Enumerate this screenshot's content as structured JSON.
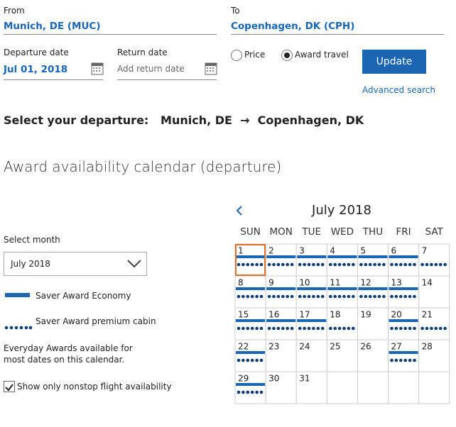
{
  "search": {
    "from_label": "From",
    "from_value": "Munich, DE (MUC)",
    "to_label": "To",
    "to_value": "Copenhagen, DK (CPH)",
    "departure_label": "Departure date",
    "departure_value": "Jul 01, 2018",
    "return_label": "Return date",
    "return_placeholder": "Add return date",
    "options": [
      {
        "label": "Price",
        "selected": false
      },
      {
        "label": "Award travel",
        "selected": true
      }
    ],
    "button": "Update",
    "advanced_link": "Advanced search"
  },
  "heading": {
    "prefix": "Select your departure:",
    "origin": "Munich, DE",
    "arrow": "→",
    "destination": "Copenhagen, DK"
  },
  "section_title": "Award availability calendar (departure)",
  "sidebar": {
    "select_label": "Select month",
    "select_value": "July 2018",
    "legend": [
      {
        "label": "Saver Award Economy"
      },
      {
        "label": "Saver Award premium cabin"
      }
    ],
    "note": "Everyday Awards available for most dates on this calendar.",
    "nonstop_label": "Show only nonstop flight availability",
    "nonstop_checked": true
  },
  "calendar": {
    "month": "July 2018",
    "weekdays": [
      "SUN",
      "MON",
      "TUE",
      "WED",
      "THU",
      "FRI",
      "SAT"
    ],
    "days": [
      {
        "day": 1,
        "economy": true,
        "premium": true,
        "selected": true
      },
      {
        "day": 2,
        "economy": true,
        "premium": true,
        "selected": false
      },
      {
        "day": 3,
        "economy": true,
        "premium": true,
        "selected": false
      },
      {
        "day": 4,
        "economy": true,
        "premium": true,
        "selected": false
      },
      {
        "day": 5,
        "economy": true,
        "premium": true,
        "selected": false
      },
      {
        "day": 6,
        "economy": true,
        "premium": true,
        "selected": false
      },
      {
        "day": 7,
        "economy": false,
        "premium": true,
        "selected": false
      },
      {
        "day": 8,
        "economy": true,
        "premium": true,
        "selected": false
      },
      {
        "day": 9,
        "economy": true,
        "premium": true,
        "selected": false
      },
      {
        "day": 10,
        "economy": true,
        "premium": true,
        "selected": false
      },
      {
        "day": 11,
        "economy": true,
        "premium": true,
        "selected": false
      },
      {
        "day": 12,
        "economy": true,
        "premium": true,
        "selected": false
      },
      {
        "day": 13,
        "economy": true,
        "premium": true,
        "selected": false
      },
      {
        "day": 14,
        "economy": false,
        "premium": false,
        "selected": false
      },
      {
        "day": 15,
        "economy": true,
        "premium": true,
        "selected": false
      },
      {
        "day": 16,
        "economy": true,
        "premium": true,
        "selected": false
      },
      {
        "day": 17,
        "economy": true,
        "premium": true,
        "selected": false
      },
      {
        "day": 18,
        "economy": false,
        "premium": true,
        "selected": false
      },
      {
        "day": 19,
        "economy": false,
        "premium": false,
        "selected": false
      },
      {
        "day": 20,
        "economy": true,
        "premium": true,
        "selected": false
      },
      {
        "day": 21,
        "economy": false,
        "premium": true,
        "selected": false
      },
      {
        "day": 22,
        "economy": true,
        "premium": true,
        "selected": false
      },
      {
        "day": 23,
        "economy": false,
        "premium": false,
        "selected": false
      },
      {
        "day": 24,
        "economy": false,
        "premium": false,
        "selected": false
      },
      {
        "day": 25,
        "economy": false,
        "premium": false,
        "selected": false
      },
      {
        "day": 26,
        "economy": false,
        "premium": false,
        "selected": false
      },
      {
        "day": 27,
        "economy": true,
        "premium": true,
        "selected": false
      },
      {
        "day": 28,
        "economy": false,
        "premium": false,
        "selected": false
      },
      {
        "day": 29,
        "economy": true,
        "premium": true,
        "selected": false
      },
      {
        "day": 30,
        "economy": false,
        "premium": false,
        "selected": false
      },
      {
        "day": 31,
        "economy": false,
        "premium": false,
        "selected": false
      }
    ]
  }
}
